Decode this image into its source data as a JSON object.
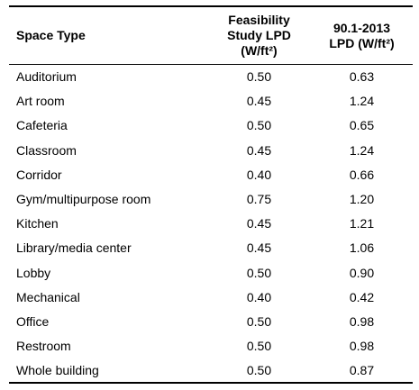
{
  "table": {
    "headers": {
      "space_type": "Space Type",
      "feasibility_line1": "Feasibility",
      "feasibility_line2": "Study LPD",
      "feasibility_line3": "(W/ft²)",
      "standard_line1": "90.1-2013",
      "standard_line2": "LPD (W/ft²)"
    },
    "rows": [
      {
        "space": "Auditorium",
        "feasibility": "0.50",
        "standard": "0.63"
      },
      {
        "space": "Art room",
        "feasibility": "0.45",
        "standard": "1.24"
      },
      {
        "space": "Cafeteria",
        "feasibility": "0.50",
        "standard": "0.65"
      },
      {
        "space": "Classroom",
        "feasibility": "0.45",
        "standard": "1.24"
      },
      {
        "space": "Corridor",
        "feasibility": "0.40",
        "standard": "0.66"
      },
      {
        "space": "Gym/multipurpose room",
        "feasibility": "0.75",
        "standard": "1.20"
      },
      {
        "space": "Kitchen",
        "feasibility": "0.45",
        "standard": "1.21"
      },
      {
        "space": "Library/media center",
        "feasibility": "0.45",
        "standard": "1.06"
      },
      {
        "space": "Lobby",
        "feasibility": "0.50",
        "standard": "0.90"
      },
      {
        "space": "Mechanical",
        "feasibility": "0.40",
        "standard": "0.42"
      },
      {
        "space": "Office",
        "feasibility": "0.50",
        "standard": "0.98"
      },
      {
        "space": "Restroom",
        "feasibility": "0.50",
        "standard": "0.98"
      },
      {
        "space": "Whole building",
        "feasibility": "0.50",
        "standard": "0.87"
      }
    ]
  }
}
